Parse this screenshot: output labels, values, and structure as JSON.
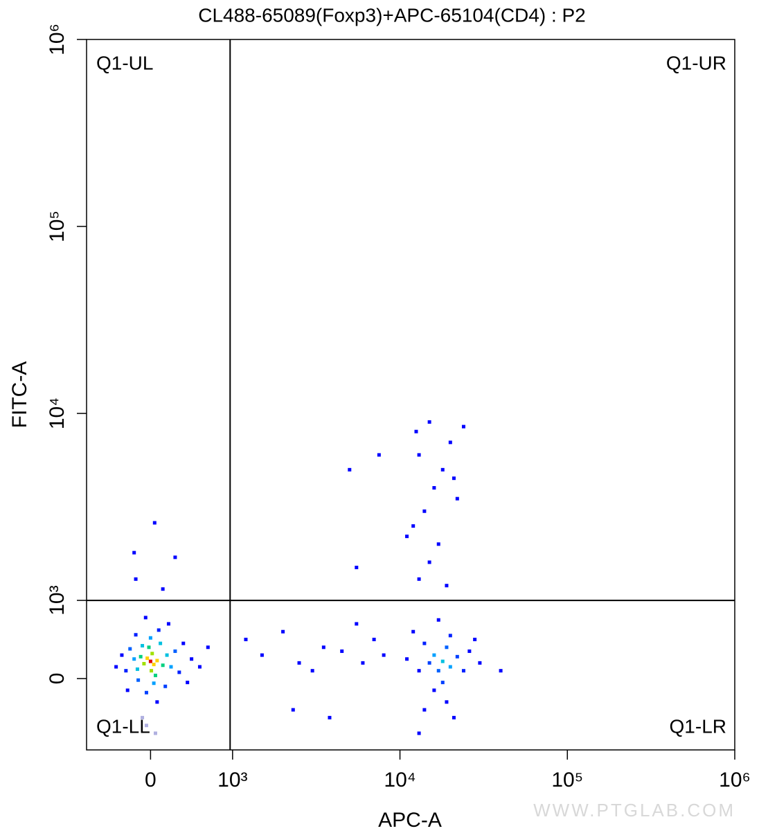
{
  "chart_data": {
    "type": "scatter",
    "title": "CL488-65089(Foxp3)+APC-65104(CD4) : P2",
    "x_label": "APC-A",
    "y_label": "FITC-A",
    "watermark": "WWW.PTGLAB.COM",
    "quadrant_labels": [
      "Q1-UL",
      "Q1-UR",
      "Q1-LL",
      "Q1-LR"
    ],
    "gate": {
      "x": 970,
      "y": 1000
    },
    "xlim": [
      -780,
      1000000
    ],
    "ylim": [
      -913,
      1000000
    ],
    "xticks": [
      0,
      {
        "value": 1000,
        "label": "10³"
      },
      {
        "value": 10000,
        "label": "10⁴"
      },
      {
        "value": 100000,
        "label": "10⁵"
      },
      {
        "value": 1000000,
        "label": "10⁶"
      }
    ],
    "yticks": [
      0,
      {
        "value": 1000,
        "label": "10³"
      },
      {
        "value": 10000,
        "label": "10⁴"
      },
      {
        "value": 100000,
        "label": "10⁵"
      },
      {
        "value": 1000000,
        "label": "10⁶"
      }
    ],
    "x": [
      0,
      40,
      -40,
      80,
      -80,
      20,
      10,
      -120,
      150,
      -20,
      60,
      -160,
      200,
      -100,
      120,
      -200,
      250,
      0,
      40,
      -150,
      300,
      -250,
      180,
      -50,
      350,
      -300,
      100,
      -180,
      400,
      -350,
      220,
      -60,
      450,
      -280,
      80,
      500,
      600,
      700,
      -420,
      150,
      -180,
      50,
      -200,
      300,
      -50,
      60,
      -100,
      1200,
      1500,
      2000,
      2500,
      3000,
      3500,
      4500,
      5500,
      6000,
      7000,
      8000,
      5000,
      5500,
      7500,
      2300,
      3800,
      18000,
      16000,
      20000,
      17000,
      19000,
      15000,
      22000,
      18000,
      14000,
      24000,
      20000,
      16000,
      13000,
      26000,
      12000,
      28000,
      19000,
      11000,
      30000,
      17000,
      40000,
      14000,
      21000,
      13000,
      13000,
      15000,
      17000,
      12000,
      14000,
      16000,
      18000,
      13000,
      20000,
      12500,
      22000,
      11000,
      19000,
      24000,
      15000,
      21000
    ],
    "y": [
      220,
      180,
      260,
      230,
      190,
      320,
      100,
      280,
      170,
      400,
      40,
      120,
      300,
      420,
      450,
      250,
      150,
      520,
      -60,
      -20,
      350,
      380,
      -100,
      -180,
      80,
      100,
      620,
      560,
      450,
      300,
      700,
      780,
      -50,
      -150,
      -300,
      250,
      150,
      400,
      150,
      1150,
      1300,
      2600,
      1800,
      1700,
      -600,
      -700,
      -500,
      500,
      300,
      600,
      200,
      100,
      400,
      350,
      700,
      200,
      500,
      300,
      5000,
      1500,
      6000,
      -400,
      -500,
      220,
      300,
      150,
      100,
      400,
      200,
      280,
      -50,
      450,
      100,
      550,
      -150,
      100,
      350,
      600,
      500,
      -300,
      250,
      200,
      750,
      100,
      -400,
      -500,
      -700,
      1300,
      1600,
      2000,
      2500,
      3000,
      4000,
      5000,
      6000,
      7000,
      8000,
      3500,
      2200,
      1200,
      8500,
      9000,
      4500
    ],
    "colors": [
      "#e00000",
      "#ffd000",
      "#ffd000",
      "#ffd000",
      "#a0e000",
      "#a0e000",
      "#a0e000",
      "#00d080",
      "#00d080",
      "#00d080",
      "#00d080",
      "#00c0e0",
      "#00c0e0",
      "#00c0e0",
      "#00c0e0",
      "#00a0ff",
      "#00a0ff",
      "#00a0ff",
      "#00a0ff",
      "#0060ff",
      "#0060ff",
      "#0060ff",
      "#0040ff",
      "#0040ff",
      "#0020ff",
      "#0020ff",
      "#0020ff",
      "#0020ff",
      "#0000ff",
      "#0000ff",
      "#0000ff",
      "#0000ff",
      "#0000ff",
      "#0000ff",
      "#0000ff",
      "#0000ff",
      "#0000ff",
      "#0000ff",
      "#0000ff",
      "#0000ff",
      "#0000ff",
      "#0000ff",
      "#0000ff",
      "#0000ff",
      "#b0b0e0",
      "#b0b0e0",
      "#b0b0e0",
      "#0000ff",
      "#0000ff",
      "#0000ff",
      "#0000ff",
      "#0000ff",
      "#0000ff",
      "#0000ff",
      "#0000ff",
      "#0000ff",
      "#0000ff",
      "#0000ff",
      "#0000ff",
      "#0000ff",
      "#0000ff",
      "#0000ff",
      "#0000ff",
      "#00c0e0",
      "#00a0ff",
      "#00a0ff",
      "#0060ff",
      "#0060ff",
      "#0040ff",
      "#0040ff",
      "#0040ff",
      "#0020ff",
      "#0020ff",
      "#0020ff",
      "#0000ff",
      "#0000ff",
      "#0000ff",
      "#0000ff",
      "#0000ff",
      "#0000ff",
      "#0000ff",
      "#0000ff",
      "#0000ff",
      "#0000ff",
      "#0000ff",
      "#0000ff",
      "#0000ff",
      "#0000ff",
      "#0000ff",
      "#0000ff",
      "#0000ff",
      "#0000ff",
      "#0000ff",
      "#0000ff",
      "#0000ff",
      "#0000ff",
      "#0000ff",
      "#0000ff",
      "#0000ff",
      "#0000ff",
      "#0000ff",
      "#0000ff",
      "#0000ff"
    ]
  }
}
